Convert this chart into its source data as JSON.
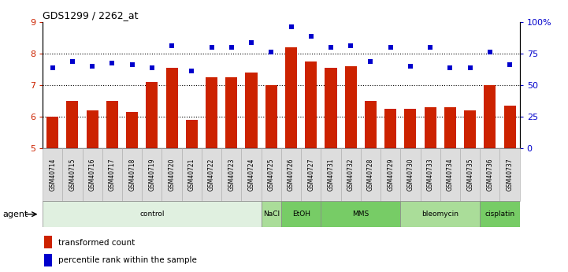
{
  "title": "GDS1299 / 2262_at",
  "samples": [
    "GSM40714",
    "GSM40715",
    "GSM40716",
    "GSM40717",
    "GSM40718",
    "GSM40719",
    "GSM40720",
    "GSM40721",
    "GSM40722",
    "GSM40723",
    "GSM40724",
    "GSM40725",
    "GSM40726",
    "GSM40727",
    "GSM40731",
    "GSM40732",
    "GSM40728",
    "GSM40729",
    "GSM40730",
    "GSM40733",
    "GSM40734",
    "GSM40735",
    "GSM40736",
    "GSM40737"
  ],
  "bar_values": [
    6.0,
    6.5,
    6.2,
    6.5,
    6.15,
    7.1,
    7.55,
    5.9,
    7.25,
    7.25,
    7.4,
    7.0,
    8.2,
    7.75,
    7.55,
    7.6,
    6.5,
    6.25,
    6.25,
    6.3,
    6.3,
    6.2,
    7.0,
    6.35
  ],
  "dot_values": [
    7.55,
    7.75,
    7.6,
    7.7,
    7.65,
    7.55,
    8.25,
    7.45,
    8.2,
    8.2,
    8.35,
    8.05,
    8.85,
    8.55,
    8.2,
    8.25,
    7.75,
    8.2,
    7.6,
    8.2,
    7.55,
    7.55,
    8.05,
    7.65
  ],
  "bar_color": "#cc2200",
  "dot_color": "#0000cc",
  "ylim": [
    5,
    9
  ],
  "yticks_left": [
    5,
    6,
    7,
    8,
    9
  ],
  "ytick_labels_right": [
    "0",
    "25",
    "50",
    "75",
    "100%"
  ],
  "hlines": [
    6.0,
    7.0,
    8.0
  ],
  "agents": [
    {
      "label": "control",
      "start": 0,
      "end": 11,
      "color": "#e0f0e0"
    },
    {
      "label": "NaCl",
      "start": 11,
      "end": 12,
      "color": "#aadd99"
    },
    {
      "label": "EtOH",
      "start": 12,
      "end": 14,
      "color": "#77cc66"
    },
    {
      "label": "MMS",
      "start": 14,
      "end": 18,
      "color": "#77cc66"
    },
    {
      "label": "bleomycin",
      "start": 18,
      "end": 22,
      "color": "#aadd99"
    },
    {
      "label": "cisplatin",
      "start": 22,
      "end": 24,
      "color": "#77cc66"
    }
  ],
  "legend_bar_label": "transformed count",
  "legend_dot_label": "percentile rank within the sample",
  "agent_label": "agent"
}
